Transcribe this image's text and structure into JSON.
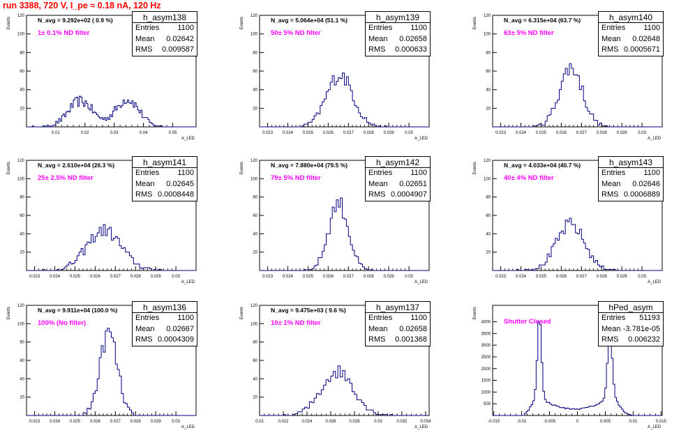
{
  "header": {
    "title": "run 3388,   720 V, I_pe ≈ 0.18 nA, 120 Hz"
  },
  "style": {
    "title_color": "#ff0000",
    "hist_color": "#000080",
    "filter_color": "#ff00ff"
  },
  "panels": [
    {
      "name": "h_asym138",
      "entries": "1100",
      "mean": "0.02642",
      "rms": "0.009587",
      "navg": "N_avg = 9.292e+02 ( 0.9 %)",
      "filter": "1± 0.1% ND filter",
      "ylabel": "Events",
      "xlabel": "A_LED",
      "xrange": [
        0.0,
        0.058
      ],
      "yrange": [
        0,
        120
      ],
      "xticks": [
        0.01,
        0.02,
        0.03,
        0.04,
        0.05
      ],
      "xtick_labels": [
        "0.01",
        "0.02",
        "0.03",
        "0.04",
        "0.05"
      ],
      "yticks": [
        20,
        40,
        60,
        80,
        100,
        120
      ],
      "ytick_labels": [
        "20",
        "40",
        "60",
        "80",
        "100",
        "120"
      ],
      "bin_width": 0.0005,
      "peaks": [
        {
          "mu": 0.0185,
          "sigma": 0.0042,
          "amp": 28
        },
        {
          "mu": 0.0345,
          "sigma": 0.004,
          "amp": 30
        }
      ]
    },
    {
      "name": "h_asym139",
      "entries": "1100",
      "mean": "0.02658",
      "rms": "0.000633",
      "navg": "N_avg = 5.064e+04 (51.1 %)",
      "filter": "50± 5% ND filter",
      "ylabel": "Events",
      "xlabel": "A_LED",
      "xrange": [
        0.0226,
        0.031
      ],
      "yrange": [
        0,
        120
      ],
      "xticks": [
        0.023,
        0.024,
        0.025,
        0.026,
        0.027,
        0.028,
        0.029,
        0.03
      ],
      "xtick_labels": [
        "0.023",
        "0.024",
        "0.025",
        "0.026",
        "0.027",
        "0.028",
        "0.029",
        "0.03"
      ],
      "yticks": [
        20,
        40,
        60,
        80,
        100,
        120
      ],
      "ytick_labels": [
        "20",
        "40",
        "60",
        "80",
        "100",
        "120"
      ],
      "bin_width": 0.0001,
      "peaks": [
        {
          "mu": 0.02658,
          "sigma": 0.00065,
          "amp": 56
        }
      ]
    },
    {
      "name": "h_asym140",
      "entries": "1100",
      "mean": "0.02648",
      "rms": "0.0005671",
      "navg": "N_avg = 6.315e+04 (63.7 %)",
      "filter": "63± 5% ND filter",
      "ylabel": "Events",
      "xlabel": "A_LED",
      "xrange": [
        0.0226,
        0.031
      ],
      "yrange": [
        0,
        120
      ],
      "xticks": [
        0.023,
        0.024,
        0.025,
        0.026,
        0.027,
        0.028,
        0.029,
        0.03
      ],
      "xtick_labels": [
        "0.023",
        "0.024",
        "0.025",
        "0.026",
        "0.027",
        "0.028",
        "0.029",
        "0.03"
      ],
      "yticks": [
        20,
        40,
        60,
        80,
        100,
        120
      ],
      "ytick_labels": [
        "20",
        "40",
        "60",
        "80",
        "100",
        "120"
      ],
      "bin_width": 0.0001,
      "peaks": [
        {
          "mu": 0.02648,
          "sigma": 0.00057,
          "amp": 64
        }
      ]
    },
    {
      "name": "h_asym141",
      "entries": "1100",
      "mean": "0.02645",
      "rms": "0.0008448",
      "navg": "N_avg = 2.610e+04 (26.3 %)",
      "filter": "25± 2.5% ND filter",
      "ylabel": "Events",
      "xlabel": "A_LED",
      "xrange": [
        0.0226,
        0.031
      ],
      "yrange": [
        0,
        120
      ],
      "xticks": [
        0.023,
        0.024,
        0.025,
        0.026,
        0.027,
        0.028,
        0.029,
        0.03
      ],
      "xtick_labels": [
        "0.023",
        "0.024",
        "0.025",
        "0.026",
        "0.027",
        "0.028",
        "0.029",
        "0.03"
      ],
      "yticks": [
        20,
        40,
        60,
        80,
        100,
        120
      ],
      "ytick_labels": [
        "20",
        "40",
        "60",
        "80",
        "100",
        "120"
      ],
      "bin_width": 0.0001,
      "peaks": [
        {
          "mu": 0.02645,
          "sigma": 0.00085,
          "amp": 44
        }
      ]
    },
    {
      "name": "h_asym142",
      "entries": "1100",
      "mean": "0.02651",
      "rms": "0.0004907",
      "navg": "N_avg = 7.880e+04 (79.5 %)",
      "filter": "79± 5% ND filter",
      "ylabel": "Events",
      "xlabel": "A_LED",
      "xrange": [
        0.0226,
        0.031
      ],
      "yrange": [
        0,
        120
      ],
      "xticks": [
        0.023,
        0.024,
        0.025,
        0.026,
        0.027,
        0.028,
        0.029,
        0.03
      ],
      "xtick_labels": [
        "0.023",
        "0.024",
        "0.025",
        "0.026",
        "0.027",
        "0.028",
        "0.029",
        "0.03"
      ],
      "yticks": [
        20,
        40,
        60,
        80,
        100,
        120
      ],
      "ytick_labels": [
        "20",
        "40",
        "60",
        "80",
        "100",
        "120"
      ],
      "bin_width": 0.0001,
      "peaks": [
        {
          "mu": 0.02651,
          "sigma": 0.00049,
          "amp": 74
        }
      ]
    },
    {
      "name": "h_asym143",
      "entries": "1100",
      "mean": "0.02646",
      "rms": "0.0006889",
      "navg": "N_avg = 4.033e+04 (40.7 %)",
      "filter": "40± 4% ND filter",
      "ylabel": "Events",
      "xlabel": "A_LED",
      "xrange": [
        0.0226,
        0.031
      ],
      "yrange": [
        0,
        120
      ],
      "xticks": [
        0.023,
        0.024,
        0.025,
        0.026,
        0.027,
        0.028,
        0.029,
        0.03
      ],
      "xtick_labels": [
        "0.023",
        "0.024",
        "0.025",
        "0.026",
        "0.027",
        "0.028",
        "0.029",
        "0.03"
      ],
      "yticks": [
        20,
        40,
        60,
        80,
        100,
        120
      ],
      "ytick_labels": [
        "20",
        "40",
        "60",
        "80",
        "100",
        "120"
      ],
      "bin_width": 0.0001,
      "peaks": [
        {
          "mu": 0.02646,
          "sigma": 0.00069,
          "amp": 50
        }
      ]
    },
    {
      "name": "h_asym136",
      "entries": "1100",
      "mean": "0.02667",
      "rms": "0.0004309",
      "navg": "N_avg = 9.911e+04 (100.0 %)",
      "filter": "100% (No filter)",
      "ylabel": "Events",
      "xlabel": "A_LED",
      "xrange": [
        0.0226,
        0.031
      ],
      "yrange": [
        0,
        120
      ],
      "xticks": [
        0.023,
        0.024,
        0.025,
        0.026,
        0.027,
        0.028,
        0.029,
        0.03
      ],
      "xtick_labels": [
        "0.023",
        "0.024",
        "0.025",
        "0.026",
        "0.027",
        "0.028",
        "0.029",
        "0.03"
      ],
      "yticks": [
        20,
        40,
        60,
        80,
        100,
        120
      ],
      "ytick_labels": [
        "20",
        "40",
        "60",
        "80",
        "100",
        "120"
      ],
      "bin_width": 0.0001,
      "peaks": [
        {
          "mu": 0.02667,
          "sigma": 0.00043,
          "amp": 90
        }
      ]
    },
    {
      "name": "h_asym137",
      "entries": "1100",
      "mean": "0.02658",
      "rms": "0.001368",
      "navg": "N_avg = 9.475e+03 ( 9.6 %)",
      "filter": "10± 1% ND filter",
      "ylabel": "Events",
      "xlabel": "A_LED",
      "xrange": [
        0.02,
        0.0343
      ],
      "yrange": [
        0,
        120
      ],
      "xticks": [
        0.02,
        0.022,
        0.024,
        0.026,
        0.028,
        0.03,
        0.032,
        0.034
      ],
      "xtick_labels": [
        "0.02",
        "0.022",
        "0.024",
        "0.026",
        "0.028",
        "0.03",
        "0.032",
        "0.034"
      ],
      "yticks": [
        20,
        40,
        60,
        80,
        100,
        120
      ],
      "ytick_labels": [
        "20",
        "40",
        "60",
        "80",
        "100",
        "120"
      ],
      "bin_width": 0.0002,
      "peaks": [
        {
          "mu": 0.02658,
          "sigma": 0.00137,
          "amp": 48
        }
      ]
    },
    {
      "name": "hPed_asym",
      "entries": "51193",
      "mean": "-3.781e-05",
      "rms": "0.006232",
      "navg": "",
      "filter": "Shutter Closed",
      "ylabel": "Events",
      "xlabel": "A_LED",
      "xrange": [
        -0.0152,
        0.0152
      ],
      "yrange": [
        0,
        4700
      ],
      "xticks": [
        -0.015,
        -0.01,
        -0.005,
        0,
        0.005,
        0.01,
        0.015
      ],
      "xtick_labels": [
        "-0.015",
        "-0.01",
        "-0.005",
        "0",
        "0.005",
        "0.01",
        "0.015"
      ],
      "yticks": [
        500,
        1000,
        1500,
        2000,
        2500,
        3000,
        3500,
        4000
      ],
      "ytick_labels": [
        "500",
        "1000",
        "1500",
        "2000",
        "2500",
        "3000",
        "3500",
        "4000"
      ],
      "bin_width": 0.0003,
      "pedestal": {
        "left_mu": -0.0068,
        "left_amp": 3500,
        "right_mu": 0.0058,
        "right_amp": 3000,
        "plateau": 500
      }
    }
  ],
  "chart_data": {
    "type": "bar",
    "title": "run 3388,   720 V, I_pe ≈ 0.18 nA, 120 Hz",
    "xlabel": "A_LED",
    "ylabel": "Events",
    "series": [
      {
        "name": "h_asym138",
        "values": [
          1100
        ]
      },
      {
        "name": "h_asym139",
        "values": [
          1100
        ]
      },
      {
        "name": "h_asym140",
        "values": [
          1100
        ]
      },
      {
        "name": "h_asym141",
        "values": [
          1100
        ]
      },
      {
        "name": "h_asym142",
        "values": [
          1100
        ]
      },
      {
        "name": "h_asym143",
        "values": [
          1100
        ]
      },
      {
        "name": "h_asym136",
        "values": [
          1100
        ]
      },
      {
        "name": "h_asym137",
        "values": [
          1100
        ]
      },
      {
        "name": "hPed_asym",
        "values": [
          51193
        ]
      }
    ],
    "categories": [
      "Entries"
    ]
  }
}
